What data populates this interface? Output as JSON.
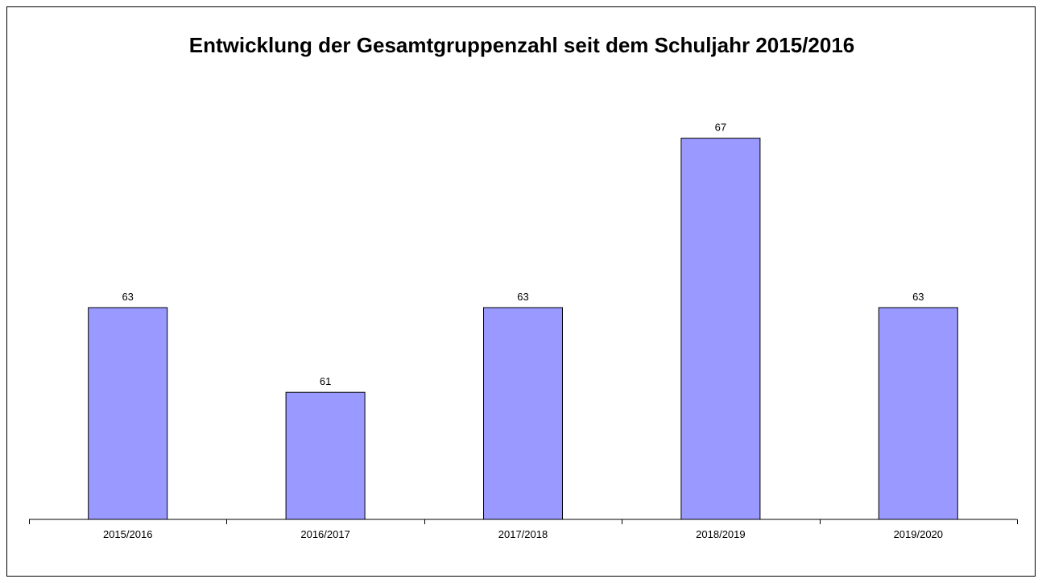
{
  "chart_data": {
    "type": "bar",
    "title": "Entwicklung der Gesamtgruppenzahl seit dem Schuljahr 2015/2016",
    "categories": [
      "2015/2016",
      "2016/2017",
      "2017/2018",
      "2018/2019",
      "2019/2020"
    ],
    "values": [
      63,
      61,
      63,
      67,
      63
    ],
    "ylim": [
      58,
      68
    ],
    "grid": false,
    "legend": "none",
    "bar_color": "#9999FF",
    "bar_edge_color": "#000000"
  }
}
